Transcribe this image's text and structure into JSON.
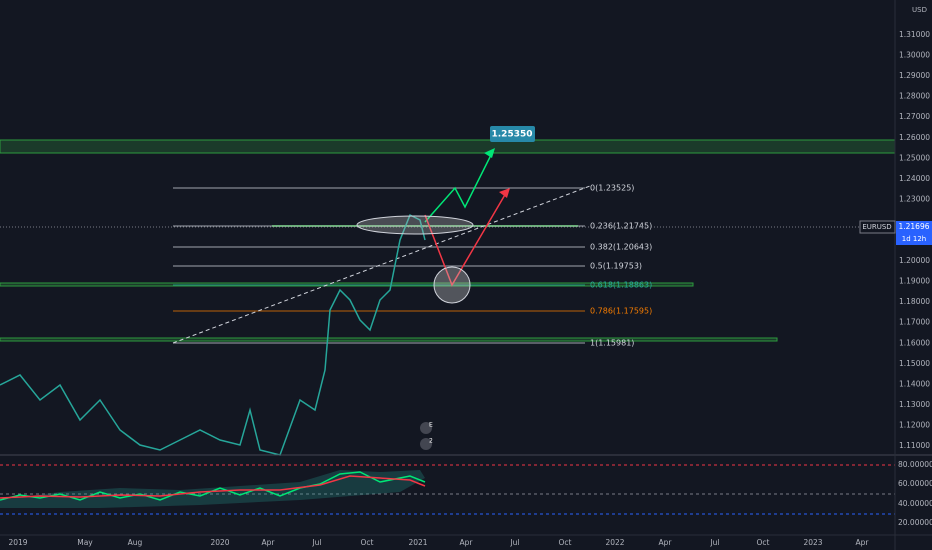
{
  "price_axis": {
    "currency": "USD",
    "ticks": [
      "1.31000",
      "1.30000",
      "1.29000",
      "1.28000",
      "1.27000",
      "1.26000",
      "1.25000",
      "1.24000",
      "1.23000",
      "1.22000",
      "1.21000",
      "1.20000",
      "1.19000",
      "1.18000",
      "1.17000",
      "1.16000",
      "1.15000",
      "1.14000",
      "1.13000",
      "1.12000",
      "1.11000"
    ]
  },
  "symbol_badge": {
    "symbol": "EURUSD",
    "price": "1.21696",
    "countdown": "1d 12h"
  },
  "target_label": "1.25350",
  "fib_levels": [
    "0(1.23525)",
    "0.236(1.21745)",
    "0.382(1.20643)",
    "0.5(1.19753)",
    "0.618(1.18863)",
    "0.786(1.17595)",
    "1(1.15981)"
  ],
  "events": [
    "E",
    "2"
  ],
  "indicator_axis": {
    "ticks": [
      "80.00000",
      "60.00000",
      "40.00000",
      "20.00000"
    ]
  },
  "time_axis": [
    "2019",
    "May",
    "Aug",
    "2020",
    "Apr",
    "Jul",
    "Oct",
    "2021",
    "Apr",
    "Jul",
    "Oct",
    "2022",
    "Apr",
    "Jul",
    "Oct",
    "2023",
    "Apr"
  ]
}
